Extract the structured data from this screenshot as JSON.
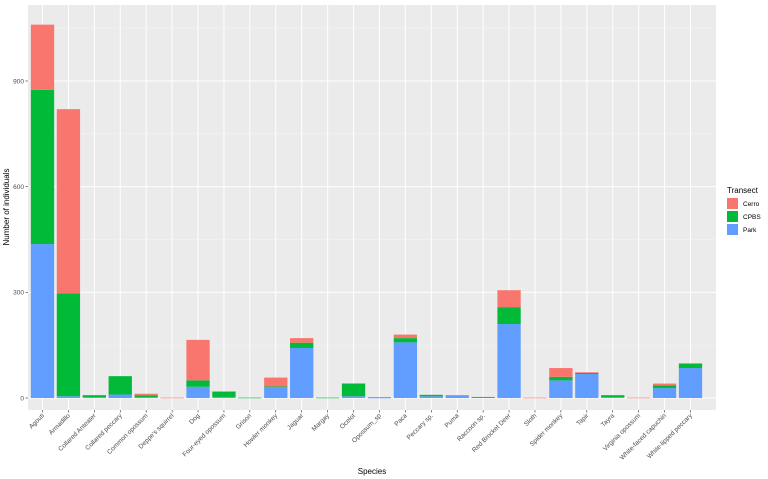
{
  "chart_data": {
    "type": "bar",
    "stacked": true,
    "xlabel": "Species",
    "ylabel": "Number of individuals",
    "ylim": [
      0,
      1080
    ],
    "yticks": [
      0,
      300,
      600,
      900
    ],
    "grid": true,
    "legend": {
      "title": "Transect",
      "placement": "right",
      "entries": [
        "Cerro",
        "CPBS",
        "Park"
      ]
    },
    "colors": {
      "Cerro": "#F8766D",
      "CPBS": "#00BA38",
      "Park": "#619CFF"
    },
    "categories": [
      "Agouti",
      "Armadillo",
      "Collared Anteater",
      "Collared peccary",
      "Common opossum",
      "Deppe's squirrel",
      "Dog",
      "Four-eyed opossum",
      "Grison",
      "Howler monkey",
      "Jaguar",
      "Margay",
      "Ocelot",
      "Opossum_sp",
      "Paca",
      "Peccary sp.",
      "Puma",
      "Raccoon sp.",
      "Red Brocket Deer",
      "Sloth",
      "Spider monkey",
      "Tapir",
      "Tayra",
      "Virginia opossum",
      "White-faced capuchin",
      "White-lipped peccary"
    ],
    "series": [
      {
        "name": "Park",
        "values": [
          437,
          5,
          2,
          10,
          2,
          0,
          32,
          3,
          0,
          32,
          142,
          0,
          5,
          1,
          158,
          5,
          8,
          2,
          210,
          0,
          50,
          68,
          2,
          0,
          28,
          85
        ]
      },
      {
        "name": "CPBS",
        "values": [
          438,
          292,
          6,
          52,
          5,
          0,
          18,
          15,
          1,
          1,
          15,
          1,
          35,
          1,
          12,
          4,
          0,
          1,
          48,
          0,
          10,
          3,
          6,
          0,
          8,
          13
        ]
      },
      {
        "name": "Cerro",
        "values": [
          185,
          523,
          0,
          0,
          5,
          1,
          115,
          1,
          0,
          25,
          13,
          0,
          2,
          0,
          10,
          0,
          0,
          0,
          48,
          1,
          25,
          2,
          0,
          1,
          5,
          0
        ]
      }
    ]
  }
}
